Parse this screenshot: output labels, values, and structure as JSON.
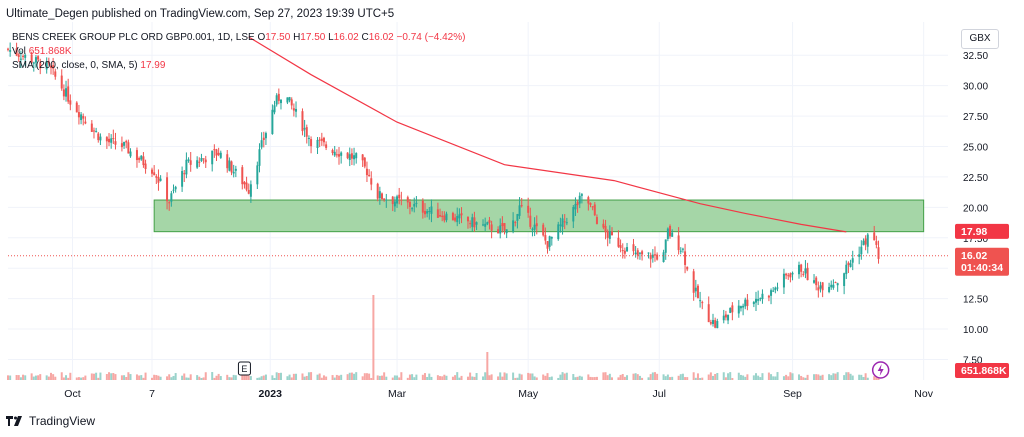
{
  "header": {
    "publisher_line": "Ultimate_Degen published on TradingView.com, Sep 27, 2023 19:39 UTC+5"
  },
  "legend": {
    "symbol": "BENS CREEK GROUP PLC ORD GBP0.001, 1D, LSE",
    "open_label": "O",
    "open": "17.50",
    "high_label": "H",
    "high": "17.50",
    "low_label": "L",
    "low": "16.02",
    "close_label": "C",
    "close": "16.02",
    "change": "−0.74 (−4.42%)",
    "vol_label": "Vol",
    "vol": "651.868K",
    "sma_label": "SMA (200, close, 0, SMA, 5)",
    "sma_value": "17.99"
  },
  "toolbar": {
    "currency": "GBX"
  },
  "price_badges": {
    "sma": "17.98",
    "last": "16.02",
    "countdown": "01:40:34",
    "volume": "651.868K"
  },
  "markers": {
    "earnings": "E",
    "dividend_icon": "lightning-icon"
  },
  "footer": {
    "brand": "TradingView",
    "logo_icon": "tradingview-logo-icon"
  },
  "colors": {
    "up": "#26a69a",
    "down": "#ef5350",
    "sma": "#f23645",
    "zone_fill": "#a5d6a7",
    "zone_border": "#43a047",
    "vol_up": "#9ad3cb",
    "vol_down": "#f7a7a4",
    "grid": "#f0f3fa"
  },
  "chart_data": {
    "type": "candlestick",
    "y_ticks": [
      "32.50",
      "30.00",
      "27.50",
      "25.00",
      "22.50",
      "20.00",
      "17.50",
      "15.00",
      "12.50",
      "10.00",
      "7.50"
    ],
    "x_ticks": [
      "Oct",
      "7",
      "2023",
      "Mar",
      "May",
      "Jul",
      "Sep",
      "Nov"
    ],
    "ylim": [
      7.5,
      34
    ],
    "zone": {
      "low": 18.0,
      "high": 20.6,
      "from": "2022-11-08",
      "to": "2023-11-01"
    },
    "sma_series": [
      {
        "x": "2022-12-22",
        "y": 34.0
      },
      {
        "x": "2023-01-20",
        "y": 30.9
      },
      {
        "x": "2023-03-01",
        "y": 27.0
      },
      {
        "x": "2023-04-20",
        "y": 23.5
      },
      {
        "x": "2023-06-10",
        "y": 22.2
      },
      {
        "x": "2023-07-20",
        "y": 20.3
      },
      {
        "x": "2023-08-10",
        "y": 19.5
      },
      {
        "x": "2023-09-05",
        "y": 18.6
      },
      {
        "x": "2023-09-26",
        "y": 17.98
      }
    ],
    "price_anchors": [
      {
        "x": "2022-09-01",
        "y": 33.0
      },
      {
        "x": "2022-09-20",
        "y": 31.5
      },
      {
        "x": "2022-10-01",
        "y": 28.5
      },
      {
        "x": "2022-10-15",
        "y": 25.5
      },
      {
        "x": "2022-10-25",
        "y": 25.0
      },
      {
        "x": "2022-11-08",
        "y": 23.0
      },
      {
        "x": "2022-11-15",
        "y": 20.5
      },
      {
        "x": "2022-11-23",
        "y": 23.5
      },
      {
        "x": "2022-12-08",
        "y": 24.5
      },
      {
        "x": "2022-12-22",
        "y": 21.5
      },
      {
        "x": "2022-12-27",
        "y": 24.5
      },
      {
        "x": "2023-01-03",
        "y": 28.5
      },
      {
        "x": "2023-01-07",
        "y": 29.5
      },
      {
        "x": "2023-01-20",
        "y": 25.5
      },
      {
        "x": "2023-02-10",
        "y": 24.0
      },
      {
        "x": "2023-02-15",
        "y": 23.0
      },
      {
        "x": "2023-02-20",
        "y": 21.0
      },
      {
        "x": "2023-03-01",
        "y": 20.5
      },
      {
        "x": "2023-03-20",
        "y": 19.5
      },
      {
        "x": "2023-04-10",
        "y": 18.5
      },
      {
        "x": "2023-04-22",
        "y": 18.0
      },
      {
        "x": "2023-04-27",
        "y": 20.0
      },
      {
        "x": "2023-05-10",
        "y": 17.0
      },
      {
        "x": "2023-05-27",
        "y": 21.0
      },
      {
        "x": "2023-06-05",
        "y": 18.0
      },
      {
        "x": "2023-06-20",
        "y": 16.0
      },
      {
        "x": "2023-07-03",
        "y": 16.0
      },
      {
        "x": "2023-07-05",
        "y": 18.0
      },
      {
        "x": "2023-07-12",
        "y": 16.5
      },
      {
        "x": "2023-07-15",
        "y": 14.0
      },
      {
        "x": "2023-07-22",
        "y": 11.5
      },
      {
        "x": "2023-07-27",
        "y": 10.3
      },
      {
        "x": "2023-08-07",
        "y": 12.0
      },
      {
        "x": "2023-08-22",
        "y": 13.0
      },
      {
        "x": "2023-08-30",
        "y": 14.5
      },
      {
        "x": "2023-09-05",
        "y": 15.0
      },
      {
        "x": "2023-09-12",
        "y": 13.5
      },
      {
        "x": "2023-09-22",
        "y": 14.0
      },
      {
        "x": "2023-09-30",
        "y": 16.0
      },
      {
        "x": "2023-10-04",
        "y": 17.0
      },
      {
        "x": "2023-10-08",
        "y": 18.0
      },
      {
        "x": "2023-10-11",
        "y": 16.0
      }
    ],
    "volume_spikes": [
      {
        "x": "2023-02-18",
        "level": 0.85,
        "dir": "down"
      },
      {
        "x": "2023-04-12",
        "level": 0.28,
        "dir": "down"
      }
    ],
    "last_price": 16.02
  }
}
